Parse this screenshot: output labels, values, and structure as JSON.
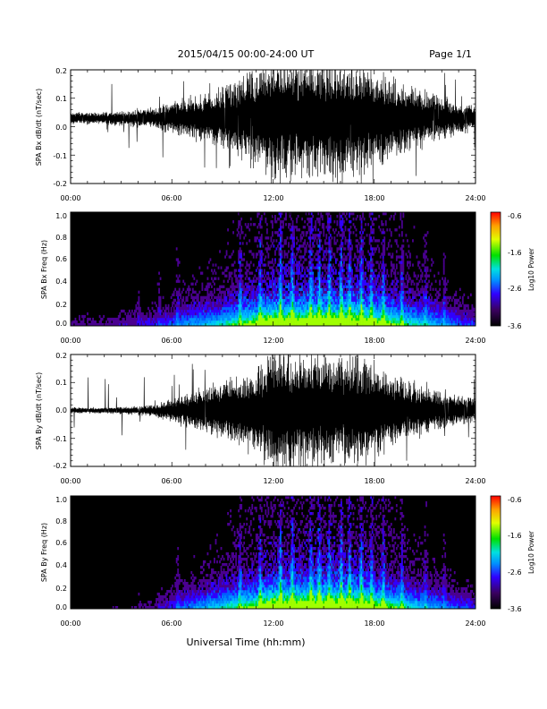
{
  "header": {
    "title": "2015/04/15  00:00-24:00 UT",
    "page": "Page 1/1"
  },
  "footer": {
    "xlabel": "Universal Time (hh:mm)"
  },
  "chart_data": [
    {
      "type": "line",
      "panel": "bx-waveform",
      "ylabel": "SPA Bx dB/dt (nT/sec)",
      "ylim": [
        -0.2,
        0.2
      ],
      "yticks": [
        "0.2",
        "0.1",
        "0.0",
        "-0.1",
        "-0.2"
      ],
      "xlim": [
        "00:00",
        "24:00"
      ],
      "xticks": [
        "00:00",
        "06:00",
        "12:00",
        "18:00",
        "24:00"
      ],
      "series": [
        {
          "x": [
            "00:00",
            "01:00",
            "02:00",
            "03:00",
            "04:00",
            "05:00",
            "06:00",
            "07:00",
            "08:00",
            "09:00",
            "10:00",
            "11:00",
            "12:00",
            "13:00",
            "14:00",
            "15:00",
            "16:00",
            "17:00",
            "18:00",
            "19:00",
            "20:00",
            "21:00",
            "22:00",
            "23:00",
            "24:00"
          ],
          "amplitude": [
            0.02,
            0.02,
            0.02,
            0.025,
            0.03,
            0.035,
            0.05,
            0.07,
            0.08,
            0.1,
            0.13,
            0.16,
            0.2,
            0.2,
            0.2,
            0.2,
            0.2,
            0.2,
            0.17,
            0.14,
            0.11,
            0.09,
            0.07,
            0.05,
            0.04
          ],
          "offset": 0.03
        }
      ]
    },
    {
      "type": "heatmap",
      "panel": "bx-spectrogram",
      "ylabel": "SPA Bx Freq (Hz)",
      "ylim": [
        0.0,
        1.0
      ],
      "yticks": [
        "1.0",
        "0.8",
        "0.6",
        "0.4",
        "0.2",
        "0.0"
      ],
      "xlim": [
        "00:00",
        "24:00"
      ],
      "xticks": [
        "00:00",
        "06:00",
        "12:00",
        "18:00",
        "24:00"
      ],
      "colorbar": {
        "label": "Log10 Power",
        "min": -3.6,
        "max": -0.6,
        "ticks": [
          "-0.6",
          "-1.6",
          "-2.6",
          "-3.6"
        ]
      }
    },
    {
      "type": "line",
      "panel": "by-waveform",
      "ylabel": "SPA By dB/dt (nT/sec)",
      "ylim": [
        -0.2,
        0.2
      ],
      "yticks": [
        "0.2",
        "0.1",
        "0.0",
        "-0.1",
        "-0.2"
      ],
      "xlim": [
        "00:00",
        "24:00"
      ],
      "xticks": [
        "00:00",
        "06:00",
        "12:00",
        "18:00",
        "24:00"
      ],
      "series": [
        {
          "x": [
            "00:00",
            "01:00",
            "02:00",
            "03:00",
            "04:00",
            "05:00",
            "06:00",
            "07:00",
            "08:00",
            "09:00",
            "10:00",
            "11:00",
            "12:00",
            "13:00",
            "14:00",
            "15:00",
            "16:00",
            "17:00",
            "18:00",
            "19:00",
            "20:00",
            "21:00",
            "22:00",
            "23:00",
            "24:00"
          ],
          "amplitude": [
            0.01,
            0.01,
            0.01,
            0.012,
            0.015,
            0.02,
            0.04,
            0.06,
            0.08,
            0.1,
            0.12,
            0.15,
            0.2,
            0.2,
            0.2,
            0.2,
            0.2,
            0.2,
            0.16,
            0.13,
            0.1,
            0.08,
            0.06,
            0.05,
            0.04
          ],
          "offset": 0.0
        }
      ]
    },
    {
      "type": "heatmap",
      "panel": "by-spectrogram",
      "ylabel": "SPA By Freq (Hz)",
      "ylim": [
        0.0,
        1.0
      ],
      "yticks": [
        "1.0",
        "0.8",
        "0.6",
        "0.4",
        "0.2",
        "0.0"
      ],
      "xlim": [
        "00:00",
        "24:00"
      ],
      "xticks": [
        "00:00",
        "06:00",
        "12:00",
        "18:00",
        "24:00"
      ],
      "colorbar": {
        "label": "Log10 Power",
        "min": -3.6,
        "max": -0.6,
        "ticks": [
          "-0.6",
          "-1.6",
          "-2.6",
          "-3.6"
        ]
      }
    }
  ]
}
